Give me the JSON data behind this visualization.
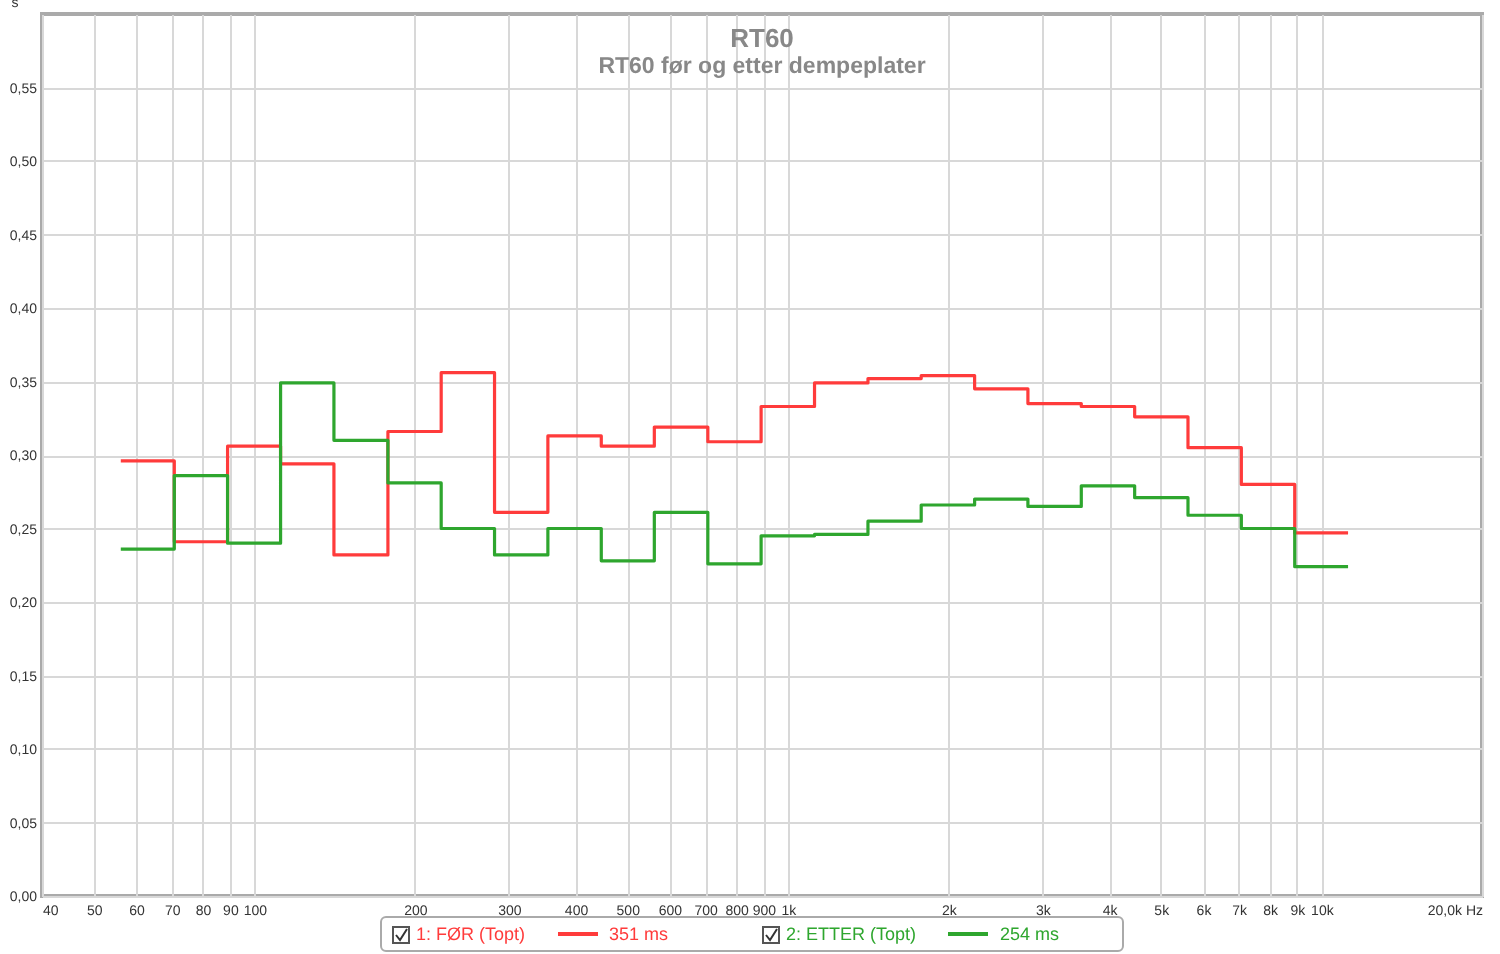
{
  "chart_data": {
    "type": "step",
    "title": "RT60",
    "subtitle": "RT60 før og etter dempeplater",
    "ylabel": "s",
    "x": [
      56.2,
      70.8,
      89.1,
      112,
      141,
      178,
      224,
      282,
      355,
      447,
      562,
      708,
      891,
      1122,
      1413,
      1778,
      2239,
      2818,
      3548,
      4467,
      5623,
      7079,
      8913,
      11220
    ],
    "series": [
      {
        "name": "1: FØR (Topt)",
        "color": "#ff3b3b",
        "values": [
          0.296,
          0.241,
          0.306,
          0.294,
          0.232,
          0.316,
          0.356,
          0.261,
          0.313,
          0.306,
          0.319,
          0.309,
          0.333,
          0.349,
          0.352,
          0.354,
          0.345,
          0.335,
          0.333,
          0.326,
          0.305,
          0.28,
          0.247,
          0.247
        ]
      },
      {
        "name": "2: ETTER (Topt)",
        "color": "#2ea62e",
        "values": [
          0.236,
          0.286,
          0.24,
          0.349,
          0.31,
          0.281,
          0.25,
          0.232,
          0.25,
          0.228,
          0.261,
          0.226,
          0.245,
          0.246,
          0.255,
          0.266,
          0.27,
          0.265,
          0.279,
          0.271,
          0.259,
          0.25,
          0.224,
          0.224
        ]
      }
    ],
    "annotations": [
      "351 ms",
      "254 ms"
    ],
    "log": "x",
    "xlim": [
      40,
      20000
    ],
    "ylim": [
      0,
      0.6
    ],
    "xticks": [
      40,
      50,
      60,
      70,
      80,
      90,
      100,
      200,
      300,
      400,
      500,
      600,
      700,
      800,
      900,
      {
        "value": 1000,
        "label": "1k"
      },
      {
        "value": 2000,
        "label": "2k"
      },
      {
        "value": 3000,
        "label": "3k"
      },
      {
        "value": 4000,
        "label": "4k"
      },
      {
        "value": 5000,
        "label": "5k"
      },
      {
        "value": 6000,
        "label": "6k"
      },
      {
        "value": 7000,
        "label": "7k"
      },
      {
        "value": 8000,
        "label": "8k"
      },
      {
        "value": 9000,
        "label": "9k"
      },
      {
        "value": 10000,
        "label": "10k"
      },
      {
        "value": 20000,
        "label": "20,0k Hz"
      }
    ],
    "yticks": [
      {
        "value": 0,
        "label": "0,00"
      },
      {
        "value": 0.05,
        "label": "0,05"
      },
      {
        "value": 0.1,
        "label": "0,10"
      },
      {
        "value": 0.15,
        "label": "0,15"
      },
      {
        "value": 0.2,
        "label": "0,20"
      },
      {
        "value": 0.25,
        "label": "0,25"
      },
      {
        "value": 0.3,
        "label": "0,30"
      },
      {
        "value": 0.35,
        "label": "0,35"
      },
      {
        "value": 0.4,
        "label": "0,40"
      },
      {
        "value": 0.45,
        "label": "0,45"
      },
      {
        "value": 0.5,
        "label": "0,50"
      },
      {
        "value": 0.55,
        "label": "0,55"
      }
    ],
    "grid": true,
    "legend": "bottom",
    "line_style": "solid",
    "marker": "none"
  }
}
